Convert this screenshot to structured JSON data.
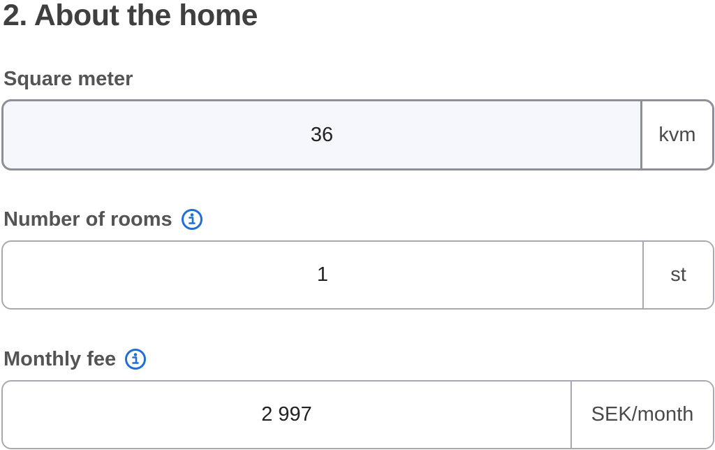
{
  "section": {
    "title": "2. About the home"
  },
  "fields": {
    "square_meter": {
      "label": "Square meter",
      "value": "36",
      "unit": "kvm"
    },
    "rooms": {
      "label": "Number of rooms",
      "value": "1",
      "unit": "st",
      "info_icon": "info-icon"
    },
    "monthly_fee": {
      "label": "Monthly fee",
      "value": "2 997",
      "unit": "SEK/month",
      "info_icon": "info-icon"
    }
  },
  "colors": {
    "title": "#3f3f3f",
    "label": "#545454",
    "info_icon": "#1f6fd6",
    "active_field_bg": "#f6f7fd",
    "border": "#a8a8b0"
  }
}
